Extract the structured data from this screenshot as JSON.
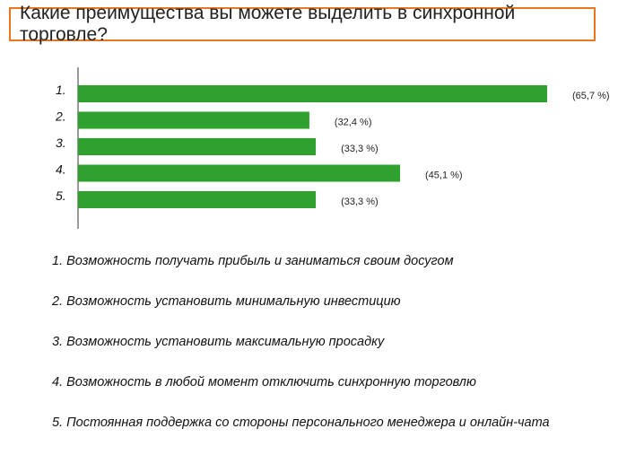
{
  "title": "Какие преимущества вы можете выделить в синхронной торговле?",
  "chart_data": {
    "type": "bar",
    "orientation": "horizontal",
    "categories": [
      "1.",
      "2.",
      "3.",
      "4.",
      "5."
    ],
    "values": [
      65.7,
      32.4,
      33.3,
      45.1,
      33.3
    ],
    "value_labels": [
      "(65,7 %)",
      "(32,4 %)",
      "(33,3 %)",
      "(45,1 %)",
      "(33,3 %)"
    ],
    "color": "#2ea12e",
    "xlim": [
      0,
      100
    ],
    "grid": false
  },
  "legend": [
    "1.  Возможность получать прибыль и заниматься своим досугом",
    "2. Возможность установить минимальную инвестицию",
    "3. Возможность установить максимальную просадку",
    "4. Возможность в любой момент отключить синхронную торговлю",
    "5. Постоянная поддержка со стороны персонального менеджера и онлайн-чата"
  ]
}
